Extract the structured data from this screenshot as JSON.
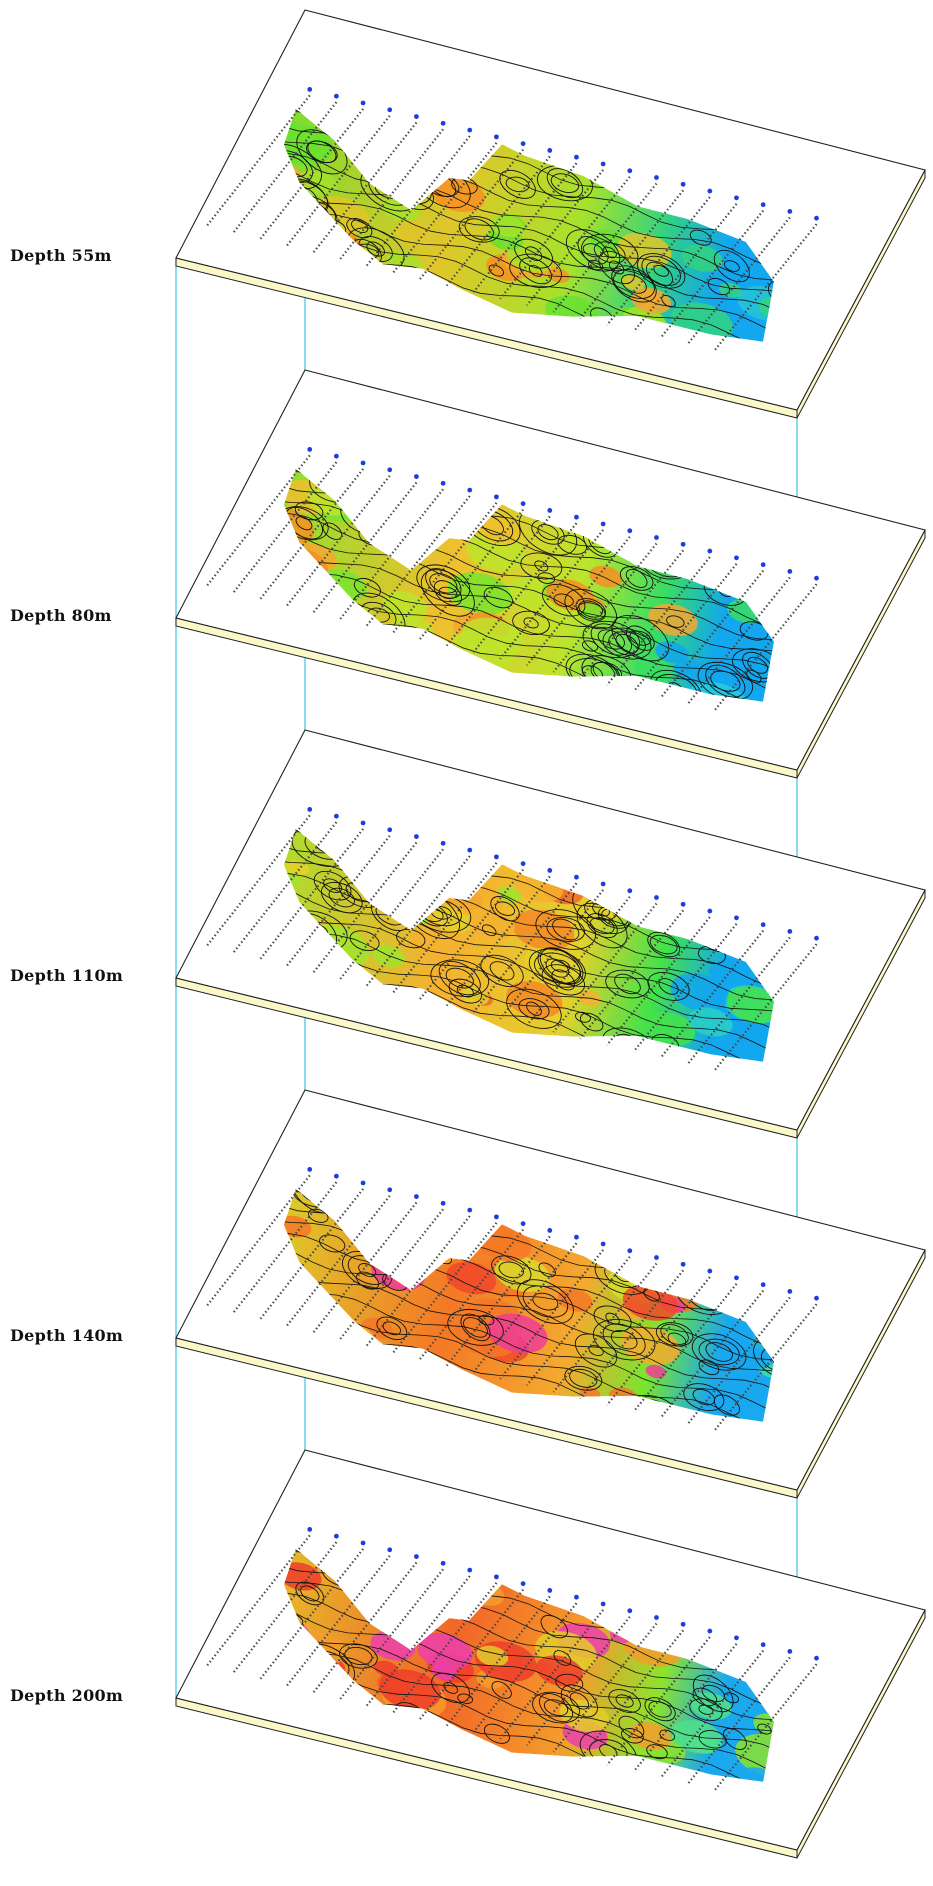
{
  "connector_color": "#39c6e0",
  "slab_side_color": "#fbf7c9",
  "line_marker_color": "#1a3fe0",
  "layers": [
    {
      "label": "Depth 55m",
      "palette": [
        "#12a7ee",
        "#28c3d6",
        "#33d27f",
        "#67e22f",
        "#a6e22c",
        "#e0c62a",
        "#f2a930",
        "#f78f22"
      ]
    },
    {
      "label": "Depth 80m",
      "palette": [
        "#12a7ee",
        "#26cde0",
        "#39de62",
        "#79e52e",
        "#bde42c",
        "#efc02d",
        "#f6a731",
        "#f78f22"
      ]
    },
    {
      "label": "Depth 110m",
      "palette": [
        "#12a7ee",
        "#29d0c6",
        "#44e24a",
        "#a0e42d",
        "#e4d12c",
        "#f5b12f",
        "#f58a26",
        "#f2662a"
      ]
    },
    {
      "label": "Depth 140m",
      "palette": [
        "#1aa8ee",
        "#3fe3a3",
        "#78e52e",
        "#d8dc2b",
        "#f4aa2f",
        "#f47826",
        "#f0482a",
        "#ee3d97"
      ]
    },
    {
      "label": "Depth 200m",
      "palette": [
        "#1aa8ee",
        "#4fe08a",
        "#8ce32d",
        "#e3cb2c",
        "#f59c2c",
        "#f26627",
        "#ee3d2a",
        "#ec3fae"
      ]
    }
  ]
}
